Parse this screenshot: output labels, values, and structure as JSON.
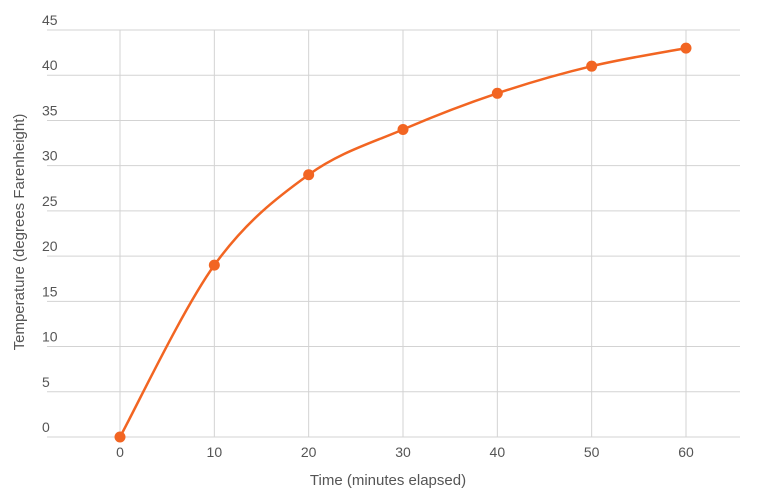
{
  "chart_data": {
    "type": "line",
    "title": "",
    "xlabel": "Time (minutes elapsed)",
    "ylabel": "Temperature (degrees Farenheight)",
    "x": [
      0,
      10,
      20,
      30,
      40,
      50,
      60
    ],
    "series": [
      {
        "values": [
          0,
          19,
          29,
          34,
          38,
          41,
          43
        ]
      }
    ],
    "xlim": [
      -10,
      65
    ],
    "ylim": [
      0,
      45
    ],
    "xticks": [
      "0",
      "10",
      "20",
      "30",
      "40",
      "50",
      "60"
    ],
    "yticks": [
      "0",
      "5",
      "10",
      "15",
      "20",
      "25",
      "30",
      "35",
      "40",
      "45"
    ],
    "grid": true,
    "legend": "none",
    "colors": {
      "line": "#f26522",
      "marker": "#f26522",
      "grid": "#d3d3d3",
      "text": "#555555"
    }
  }
}
